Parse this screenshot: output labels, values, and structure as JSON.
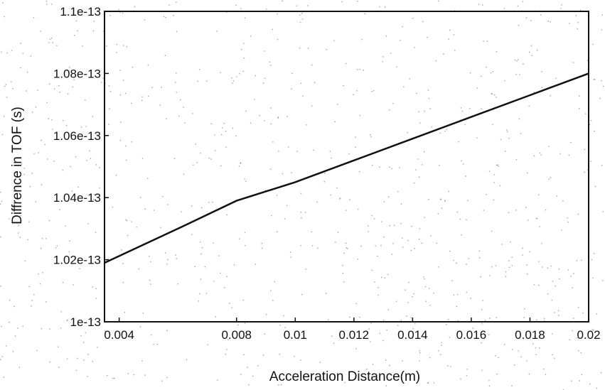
{
  "chart_data": {
    "type": "line",
    "title": "",
    "xlabel": "Acceleration Distance(m)",
    "ylabel": "Diffrence in TOF (s)",
    "xlim": [
      0.0035,
      0.02
    ],
    "ylim": [
      1e-13,
      1.1e-13
    ],
    "x_ticks": [
      {
        "value": 0.004,
        "label": "0.004"
      },
      {
        "value": 0.008,
        "label": "0.008"
      },
      {
        "value": 0.01,
        "label": "0.01"
      },
      {
        "value": 0.012,
        "label": "0.012"
      },
      {
        "value": 0.014,
        "label": "0.014"
      },
      {
        "value": 0.016,
        "label": "0.016"
      },
      {
        "value": 0.018,
        "label": "0.018"
      },
      {
        "value": 0.02,
        "label": "0.02"
      }
    ],
    "y_ticks": [
      {
        "value": 1e-13,
        "label": "1e-13"
      },
      {
        "value": 1.02e-13,
        "label": "1.02e-13"
      },
      {
        "value": 1.04e-13,
        "label": "1.04e-13"
      },
      {
        "value": 1.06e-13,
        "label": "1.06e-13"
      },
      {
        "value": 1.08e-13,
        "label": "1.08e-13"
      },
      {
        "value": 1.1e-13,
        "label": "1.1e-13"
      }
    ],
    "grid": false,
    "legend": "none",
    "series": [
      {
        "color": "#111111",
        "x": [
          0.0035,
          0.006,
          0.008,
          0.01,
          0.012,
          0.014,
          0.016,
          0.018,
          0.02
        ],
        "y": [
          1.019e-13,
          1.03e-13,
          1.039e-13,
          1.045e-13,
          1.052e-13,
          1.059e-13,
          1.066e-13,
          1.073e-13,
          1.08e-13
        ]
      }
    ]
  }
}
